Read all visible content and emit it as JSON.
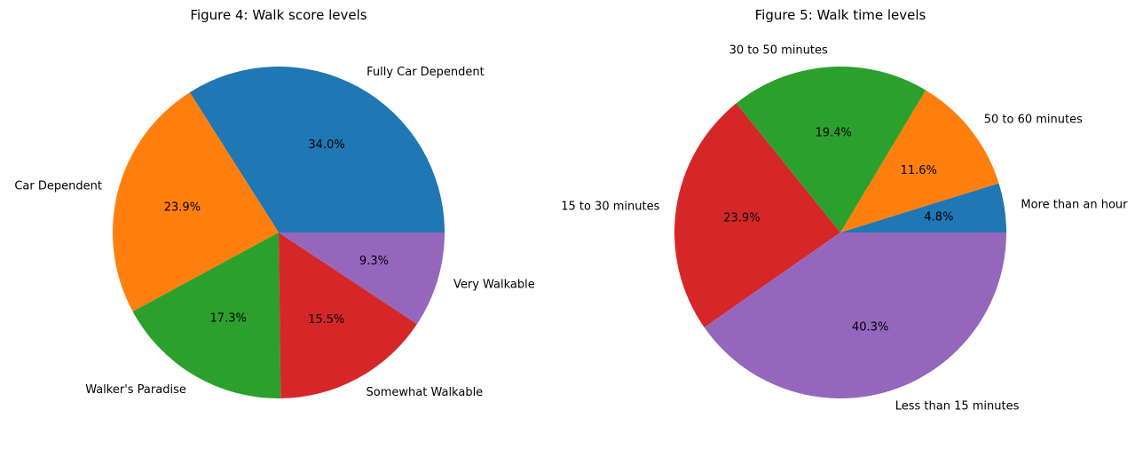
{
  "chart_data": [
    {
      "type": "pie",
      "title": "Figure 4: Walk score levels",
      "slices": [
        {
          "label": "Fully Car Dependent",
          "value": 34.0,
          "pct_label": "34.0%",
          "color": "#1f77b4"
        },
        {
          "label": "Car Dependent",
          "value": 23.9,
          "pct_label": "23.9%",
          "color": "#ff7f0e"
        },
        {
          "label": "Walker's Paradise",
          "value": 17.3,
          "pct_label": "17.3%",
          "color": "#2ca02c"
        },
        {
          "label": "Somewhat Walkable",
          "value": 15.5,
          "pct_label": "15.5%",
          "color": "#d62728"
        },
        {
          "label": "Very Walkable",
          "value": 9.3,
          "pct_label": "9.3%",
          "color": "#9467bd"
        }
      ]
    },
    {
      "type": "pie",
      "title": "Figure 5: Walk time levels",
      "slices": [
        {
          "label": "More than an hour",
          "value": 4.8,
          "pct_label": "4.8%",
          "color": "#1f77b4"
        },
        {
          "label": "50 to 60 minutes",
          "value": 11.6,
          "pct_label": "11.6%",
          "color": "#ff7f0e"
        },
        {
          "label": "30 to 50 minutes",
          "value": 19.4,
          "pct_label": "19.4%",
          "color": "#2ca02c"
        },
        {
          "label": "15 to 30 minutes",
          "value": 23.9,
          "pct_label": "23.9%",
          "color": "#d62728"
        },
        {
          "label": "Less than 15 minutes",
          "value": 40.3,
          "pct_label": "40.3%",
          "color": "#9467bd"
        }
      ]
    }
  ]
}
